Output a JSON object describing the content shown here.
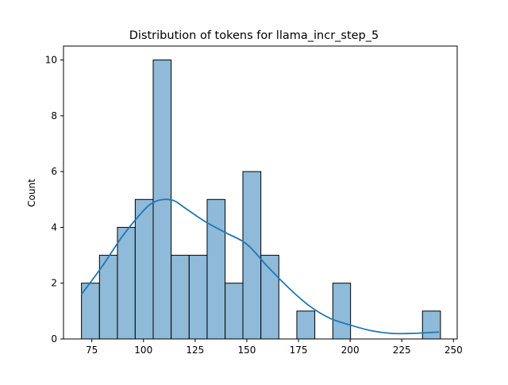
{
  "chart_data": {
    "type": "bar",
    "title": "Distribution of tokens for llama_incr_step_5",
    "xlabel": "",
    "ylabel": "Count",
    "xlim": [
      61.3,
      251.8
    ],
    "ylim": [
      0,
      10.5
    ],
    "grid": false,
    "legend": "none",
    "xticks": [
      75,
      100,
      125,
      150,
      175,
      200,
      225,
      250
    ],
    "yticks": [
      0,
      2,
      4,
      6,
      8,
      10
    ],
    "bins": [
      {
        "x0": 70.0,
        "x1": 78.7,
        "count": 2
      },
      {
        "x0": 78.7,
        "x1": 87.4,
        "count": 3
      },
      {
        "x0": 87.4,
        "x1": 96.0,
        "count": 4
      },
      {
        "x0": 96.0,
        "x1": 104.7,
        "count": 5
      },
      {
        "x0": 104.7,
        "x1": 113.4,
        "count": 10
      },
      {
        "x0": 113.4,
        "x1": 122.1,
        "count": 3
      },
      {
        "x0": 122.1,
        "x1": 130.8,
        "count": 3
      },
      {
        "x0": 130.8,
        "x1": 139.5,
        "count": 5
      },
      {
        "x0": 139.5,
        "x1": 148.1,
        "count": 2
      },
      {
        "x0": 148.1,
        "x1": 156.8,
        "count": 6
      },
      {
        "x0": 156.8,
        "x1": 165.5,
        "count": 3
      },
      {
        "x0": 165.5,
        "x1": 174.2,
        "count": 0
      },
      {
        "x0": 174.2,
        "x1": 182.9,
        "count": 1
      },
      {
        "x0": 182.9,
        "x1": 191.6,
        "count": 0
      },
      {
        "x0": 191.6,
        "x1": 200.2,
        "count": 2
      },
      {
        "x0": 200.2,
        "x1": 208.9,
        "count": 0
      },
      {
        "x0": 208.9,
        "x1": 217.6,
        "count": 0
      },
      {
        "x0": 217.6,
        "x1": 226.3,
        "count": 0
      },
      {
        "x0": 226.3,
        "x1": 235.0,
        "count": 0
      },
      {
        "x0": 235.0,
        "x1": 243.7,
        "count": 1
      }
    ],
    "kde": {
      "x": [
        70,
        80,
        90,
        100,
        105,
        110,
        115,
        120,
        130,
        140,
        150,
        160,
        170,
        180,
        190,
        200,
        210,
        220,
        230,
        243
      ],
      "y": [
        1.6,
        2.6,
        3.7,
        4.6,
        4.9,
        5.0,
        4.95,
        4.7,
        4.2,
        3.8,
        3.4,
        2.6,
        1.85,
        1.2,
        0.75,
        0.5,
        0.3,
        0.2,
        0.2,
        0.25
      ]
    },
    "colors": {
      "bar_fill": "#8fbad9",
      "bar_edge": "#000000",
      "kde_line": "#1f77b4"
    }
  }
}
